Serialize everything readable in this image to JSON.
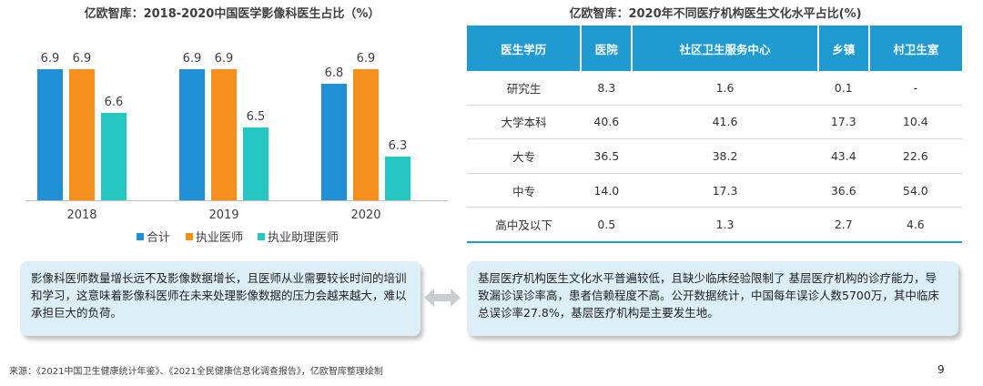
{
  "chart_data": {
    "type": "bar",
    "title": "亿欧智库：2018-2020中国医学影像科医生占比（%）",
    "categories": [
      "2018",
      "2019",
      "2020"
    ],
    "series": [
      {
        "name": "合计",
        "values": [
          6.9,
          6.9,
          6.8
        ]
      },
      {
        "name": "执业医师",
        "values": [
          6.9,
          6.9,
          6.9
        ]
      },
      {
        "name": "执业助理医师",
        "values": [
          6.6,
          6.5,
          6.3
        ]
      }
    ],
    "ylim": [
      6.0,
      7.0
    ],
    "colors": [
      "#1f8fd6",
      "#f5901e",
      "#26c6c2"
    ],
    "legend_position": "bottom",
    "grid": false,
    "xlabel": "",
    "ylabel": ""
  },
  "table": {
    "title": "亿欧智库：2020年不同医疗机构医生文化水平占比(%)",
    "headers": [
      "医生学历",
      "医院",
      "社区卫生服务中心",
      "乡镇",
      "村卫生室"
    ],
    "rows": [
      [
        "研究生",
        "8.3",
        "1.6",
        "0.1",
        "-"
      ],
      [
        "大学本科",
        "40.6",
        "41.6",
        "17.3",
        "10.4"
      ],
      [
        "大专",
        "36.5",
        "38.2",
        "43.4",
        "22.6"
      ],
      [
        "中专",
        "14.0",
        "17.3",
        "36.6",
        "54.0"
      ],
      [
        "高中及以下",
        "0.5",
        "1.3",
        "2.7",
        "4.6"
      ]
    ]
  },
  "left_text": "影像科医师数量增长远不及影像数据增长，且医师从业需要较长时间的培训和学习，这意味着影像科医师在未来处理影像数据的压力会越来越大，难以承担巨大的负荷。",
  "right_text": "基层医疗机构医生文化水平普遍较低，且缺少临床经验限制了 基层医疗机构的诊疗能力，导致漏诊误诊率高，患者信赖程度不高。公开数据统计，中国每年误诊人数5700万，其中临床总误诊率27.8%，基层医疗机构是主要发生地。",
  "source": "来源：《2021中国卫生健康统计年鉴》、《2021全民健康信息化调查报告》，亿欧智库整理绘制",
  "page_number": "9"
}
